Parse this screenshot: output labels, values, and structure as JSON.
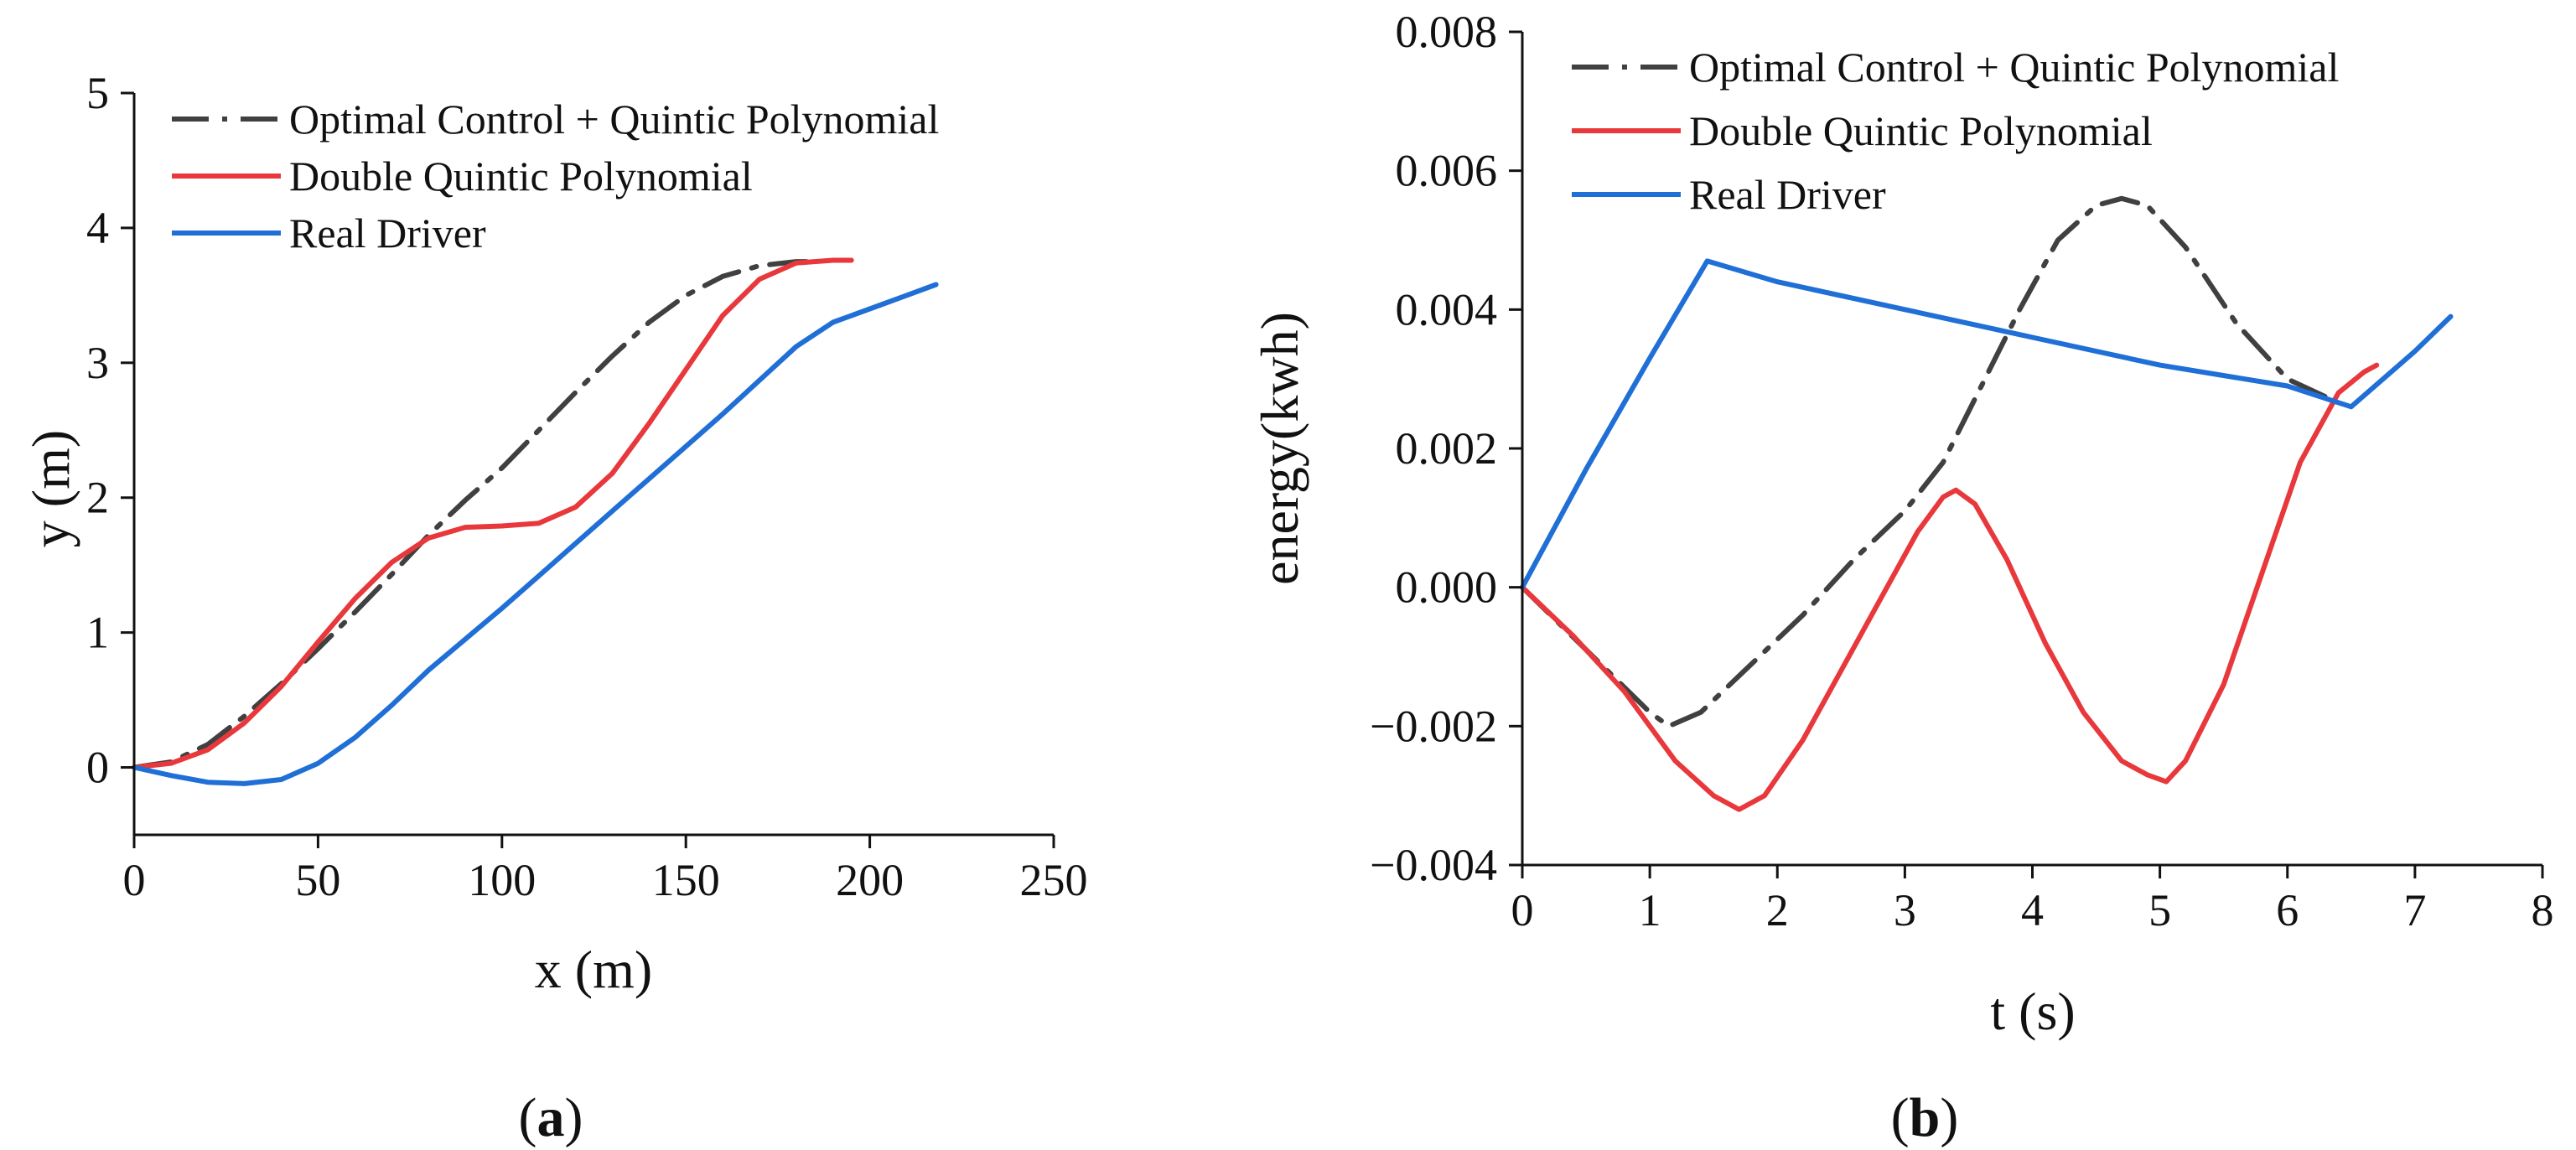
{
  "chart_data": [
    {
      "panel": "a",
      "type": "line",
      "xlabel": "x (m)",
      "ylabel": "y (m)",
      "xlim": [
        0,
        250
      ],
      "ylim": [
        -0.5,
        5
      ],
      "xticks": [
        0,
        50,
        100,
        150,
        200,
        250
      ],
      "xtick_labels": [
        "0",
        "50",
        "100",
        "150",
        "200",
        "250"
      ],
      "yticks": [
        0,
        1,
        2,
        3,
        4,
        5
      ],
      "ytick_labels": [
        "0",
        "1",
        "2",
        "3",
        "4",
        "5"
      ],
      "legend_position": "top-left",
      "series": [
        {
          "name": "Optimal Control + Quintic Polynomial",
          "color": "#404040",
          "dash": "dashdot",
          "x": [
            0,
            10,
            20,
            30,
            40,
            50,
            60,
            70,
            80,
            90,
            100,
            110,
            120,
            130,
            140,
            150,
            160,
            170,
            180,
            186
          ],
          "y": [
            0,
            0.04,
            0.17,
            0.38,
            0.62,
            0.88,
            1.15,
            1.43,
            1.72,
            1.98,
            2.22,
            2.5,
            2.78,
            3.05,
            3.3,
            3.5,
            3.64,
            3.72,
            3.75,
            3.75
          ]
        },
        {
          "name": "Double Quintic Polynomial",
          "color": "#e8383c",
          "dash": "solid",
          "x": [
            0,
            10,
            20,
            30,
            40,
            50,
            60,
            70,
            80,
            90,
            100,
            110,
            120,
            130,
            140,
            150,
            160,
            170,
            180,
            190,
            195
          ],
          "y": [
            0,
            0.03,
            0.13,
            0.33,
            0.6,
            0.93,
            1.25,
            1.52,
            1.7,
            1.78,
            1.79,
            1.81,
            1.93,
            2.18,
            2.55,
            2.95,
            3.35,
            3.62,
            3.74,
            3.76,
            3.76
          ]
        },
        {
          "name": "Real Driver",
          "color": "#1f6fd6",
          "dash": "solid",
          "x": [
            0,
            10,
            20,
            30,
            40,
            50,
            60,
            70,
            80,
            90,
            100,
            110,
            120,
            130,
            140,
            150,
            160,
            170,
            180,
            190,
            200,
            210,
            218
          ],
          "y": [
            0,
            -0.06,
            -0.11,
            -0.12,
            -0.09,
            0.03,
            0.22,
            0.46,
            0.72,
            0.95,
            1.18,
            1.42,
            1.66,
            1.9,
            2.14,
            2.38,
            2.62,
            2.87,
            3.12,
            3.3,
            3.4,
            3.5,
            3.58
          ]
        }
      ]
    },
    {
      "panel": "b",
      "type": "line",
      "xlabel": "t (s)",
      "ylabel": "energy(kwh)",
      "xlim": [
        0,
        8
      ],
      "ylim": [
        -0.004,
        0.008
      ],
      "xticks": [
        0,
        1,
        2,
        3,
        4,
        5,
        6,
        7,
        8
      ],
      "xtick_labels": [
        "0",
        "1",
        "2",
        "3",
        "4",
        "5",
        "6",
        "7",
        "8"
      ],
      "yticks": [
        -0.004,
        -0.002,
        0.0,
        0.002,
        0.004,
        0.006,
        0.008
      ],
      "ytick_labels": [
        "−0.004",
        "−0.002",
        "0.000",
        "0.002",
        "0.004",
        "0.006",
        "0.008"
      ],
      "legend_position": "top-left",
      "series": [
        {
          "name": "Optimal Control + Quintic Polynomial",
          "color": "#404040",
          "dash": "dashdot",
          "x": [
            0,
            0.5,
            1.0,
            1.15,
            1.4,
            1.8,
            2.2,
            2.6,
            3.0,
            3.3,
            3.6,
            3.9,
            4.2,
            4.5,
            4.7,
            4.9,
            5.2,
            5.6,
            6.0,
            6.35
          ],
          "y": [
            0,
            -0.0009,
            -0.0018,
            -0.002,
            -0.0018,
            -0.0011,
            -0.0004,
            0.0004,
            0.0011,
            0.0018,
            0.0029,
            0.004,
            0.005,
            0.0055,
            0.0056,
            0.0055,
            0.0049,
            0.0038,
            0.003,
            0.0027
          ]
        },
        {
          "name": "Double Quintic Polynomial",
          "color": "#e8383c",
          "dash": "solid",
          "x": [
            0,
            0.4,
            0.8,
            1.2,
            1.5,
            1.7,
            1.9,
            2.2,
            2.5,
            2.8,
            3.1,
            3.3,
            3.4,
            3.55,
            3.8,
            4.1,
            4.4,
            4.7,
            4.9,
            5.05,
            5.2,
            5.5,
            5.8,
            6.1,
            6.4,
            6.6,
            6.7
          ],
          "y": [
            0,
            -0.0007,
            -0.0015,
            -0.0025,
            -0.003,
            -0.0032,
            -0.003,
            -0.0022,
            -0.0012,
            -0.0002,
            0.0008,
            0.0013,
            0.0014,
            0.0012,
            0.0004,
            -0.0008,
            -0.0018,
            -0.0025,
            -0.0027,
            -0.0028,
            -0.0025,
            -0.0014,
            0.0002,
            0.0018,
            0.0028,
            0.0031,
            0.0032
          ]
        },
        {
          "name": "Real Driver",
          "color": "#1f6fd6",
          "dash": "solid",
          "x": [
            0,
            0.5,
            1.0,
            1.45,
            2.0,
            3.0,
            4.0,
            5.0,
            6.0,
            6.5,
            7.0,
            7.28
          ],
          "y": [
            0,
            0.0017,
            0.0033,
            0.0047,
            0.0044,
            0.004,
            0.0036,
            0.0032,
            0.0029,
            0.0026,
            0.0034,
            0.0039
          ]
        }
      ]
    }
  ],
  "panel_labels": [
    {
      "open": "(",
      "letter": "a",
      "close": ")"
    },
    {
      "open": "(",
      "letter": "b",
      "close": ")"
    }
  ]
}
